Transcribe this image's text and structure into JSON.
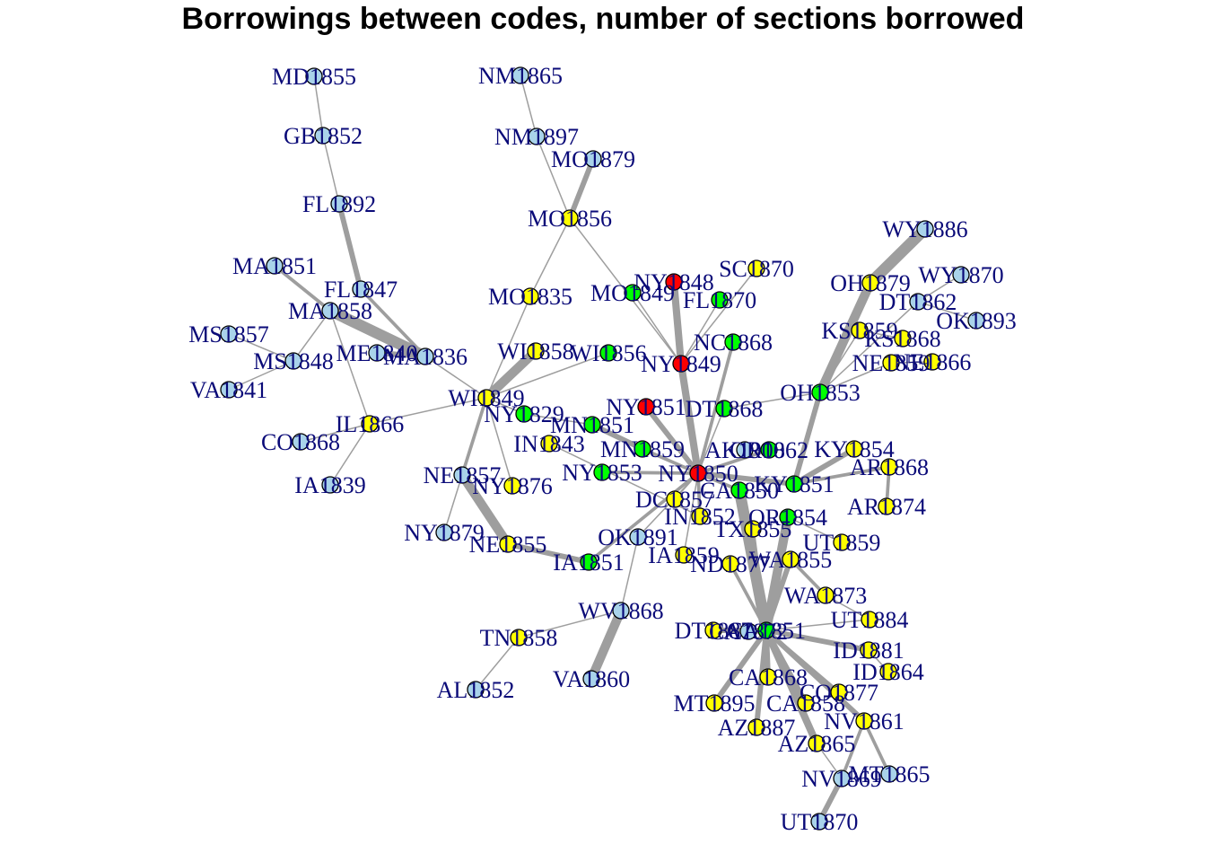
{
  "title": "Borrowings between codes, number of sections borrowed",
  "colors": {
    "light_blue": "#a9d3ea",
    "yellow": "#ffff00",
    "green": "#00ff00",
    "red": "#ff0000",
    "edge": "#9e9e9e",
    "label": "#0a0a78"
  },
  "nodes": [
    {
      "id": "MD1855",
      "label": "MD1855",
      "color": "light_blue"
    },
    {
      "id": "GB1852",
      "label": "GB1852",
      "color": "light_blue"
    },
    {
      "id": "FL1892",
      "label": "FL1892",
      "color": "light_blue"
    },
    {
      "id": "MA1851",
      "label": "MA1851",
      "color": "light_blue"
    },
    {
      "id": "FL1847",
      "label": "FL1847",
      "color": "light_blue"
    },
    {
      "id": "MA1858",
      "label": "MA1858",
      "color": "light_blue"
    },
    {
      "id": "MS1857",
      "label": "MS1857",
      "color": "light_blue"
    },
    {
      "id": "MS1848",
      "label": "MS1848",
      "color": "light_blue"
    },
    {
      "id": "ME1840",
      "label": "ME1840",
      "color": "light_blue"
    },
    {
      "id": "MA1836",
      "label": "MA1836",
      "color": "light_blue"
    },
    {
      "id": "VA1841",
      "label": "VA1841",
      "color": "light_blue"
    },
    {
      "id": "IL1866",
      "label": "IL1866",
      "color": "yellow"
    },
    {
      "id": "CO1868",
      "label": "CO1868",
      "color": "light_blue"
    },
    {
      "id": "IA1839",
      "label": "IA1839",
      "color": "light_blue"
    },
    {
      "id": "NM1865",
      "label": "NM1865",
      "color": "light_blue"
    },
    {
      "id": "NM1897",
      "label": "NM1897",
      "color": "light_blue"
    },
    {
      "id": "MO1879",
      "label": "MO1879",
      "color": "light_blue"
    },
    {
      "id": "MO1856",
      "label": "MO1856",
      "color": "yellow"
    },
    {
      "id": "MO1835",
      "label": "MO1835",
      "color": "yellow"
    },
    {
      "id": "MO1849",
      "label": "MO1849",
      "color": "green"
    },
    {
      "id": "NY1848",
      "label": "NY1848",
      "color": "red"
    },
    {
      "id": "SC1870",
      "label": "SC1870",
      "color": "yellow"
    },
    {
      "id": "FL1870",
      "label": "FL1870",
      "color": "green"
    },
    {
      "id": "WI1858",
      "label": "WI1858",
      "color": "yellow"
    },
    {
      "id": "WI1856",
      "label": "WI1856",
      "color": "green"
    },
    {
      "id": "NY1849",
      "label": "NY1849",
      "color": "red"
    },
    {
      "id": "NC1868",
      "label": "NC1868",
      "color": "green"
    },
    {
      "id": "WI1849",
      "label": "WI1849",
      "color": "yellow"
    },
    {
      "id": "NY1829",
      "label": "NY1829",
      "color": "green"
    },
    {
      "id": "NY1851",
      "label": "NY1851",
      "color": "red"
    },
    {
      "id": "DT1868",
      "label": "DT1868",
      "color": "green"
    },
    {
      "id": "MN1851",
      "label": "MN1851",
      "color": "green"
    },
    {
      "id": "IN1843",
      "label": "IN1843",
      "color": "yellow"
    },
    {
      "id": "MN1859",
      "label": "MN1859",
      "color": "green"
    },
    {
      "id": "NE1857",
      "label": "NE1857",
      "color": "light_blue"
    },
    {
      "id": "NY1853",
      "label": "NY1853",
      "color": "green"
    },
    {
      "id": "NY1850",
      "label": "NY1850",
      "color": "red"
    },
    {
      "id": "NY1876",
      "label": "NY1876",
      "color": "yellow"
    },
    {
      "id": "AK1900",
      "label": "AK1900",
      "color": "light_blue"
    },
    {
      "id": "OR1862",
      "label": "OR1862",
      "color": "green"
    },
    {
      "id": "KY1854",
      "label": "KY1854",
      "color": "yellow"
    },
    {
      "id": "DC1857",
      "label": "DC1857",
      "color": "yellow"
    },
    {
      "id": "CA1850",
      "label": "CA1850",
      "color": "green"
    },
    {
      "id": "KY1851",
      "label": "KY1851",
      "color": "green"
    },
    {
      "id": "IN1852",
      "label": "IN1852",
      "color": "yellow"
    },
    {
      "id": "OR1854",
      "label": "OR1854",
      "color": "green"
    },
    {
      "id": "TX1855",
      "label": "TX1855",
      "color": "yellow"
    },
    {
      "id": "NY1879",
      "label": "NY1879",
      "color": "light_blue"
    },
    {
      "id": "NE1855",
      "label": "NE1855",
      "color": "yellow"
    },
    {
      "id": "OK1891",
      "label": "OK1891",
      "color": "light_blue"
    },
    {
      "id": "IA1851",
      "label": "IA1851",
      "color": "green"
    },
    {
      "id": "IA1859",
      "label": "IA1859",
      "color": "yellow"
    },
    {
      "id": "ND1877",
      "label": "ND1877",
      "color": "yellow"
    },
    {
      "id": "WA1855",
      "label": "WA1855",
      "color": "yellow"
    },
    {
      "id": "UT1859",
      "label": "UT1859",
      "color": "yellow"
    },
    {
      "id": "WY1886",
      "label": "WY1886",
      "color": "light_blue"
    },
    {
      "id": "WY1870",
      "label": "WY1870",
      "color": "light_blue"
    },
    {
      "id": "OH1879",
      "label": "OH1879",
      "color": "yellow"
    },
    {
      "id": "DT1862",
      "label": "DT1862",
      "color": "light_blue"
    },
    {
      "id": "OK1893",
      "label": "OK1893",
      "color": "light_blue"
    },
    {
      "id": "KS1859",
      "label": "KS1859",
      "color": "yellow"
    },
    {
      "id": "KS1868",
      "label": "KS1868",
      "color": "yellow"
    },
    {
      "id": "NE1859",
      "label": "NE1859",
      "color": "yellow"
    },
    {
      "id": "NE1866",
      "label": "NE1866",
      "color": "yellow"
    },
    {
      "id": "OH1853",
      "label": "OH1853",
      "color": "green"
    },
    {
      "id": "AR1868",
      "label": "AR1868",
      "color": "yellow"
    },
    {
      "id": "AR1874",
      "label": "AR1874",
      "color": "yellow"
    },
    {
      "id": "WA1873",
      "label": "WA1873",
      "color": "yellow"
    },
    {
      "id": "UT1884",
      "label": "UT1884",
      "color": "yellow"
    },
    {
      "id": "WV1868",
      "label": "WV1868",
      "color": "light_blue"
    },
    {
      "id": "TN1858",
      "label": "TN1858",
      "color": "yellow"
    },
    {
      "id": "AL1852",
      "label": "AL1852",
      "color": "light_blue"
    },
    {
      "id": "VA1860",
      "label": "VA1860",
      "color": "light_blue"
    },
    {
      "id": "DT1887",
      "label": "DT1887",
      "color": "yellow"
    },
    {
      "id": "CA1872",
      "label": "CA1872",
      "color": "light_blue"
    },
    {
      "id": "CA1851",
      "label": "CA1851",
      "color": "green"
    },
    {
      "id": "ID1881",
      "label": "ID1881",
      "color": "yellow"
    },
    {
      "id": "ID1864",
      "label": "ID1864",
      "color": "yellow"
    },
    {
      "id": "CA1868",
      "label": "CA1868",
      "color": "yellow"
    },
    {
      "id": "CO1877",
      "label": "CO1877",
      "color": "yellow"
    },
    {
      "id": "MT1895",
      "label": "MT1895",
      "color": "yellow"
    },
    {
      "id": "CA1858",
      "label": "CA1858",
      "color": "yellow"
    },
    {
      "id": "NV1861",
      "label": "NV1861",
      "color": "yellow"
    },
    {
      "id": "AZ1887",
      "label": "AZ1887",
      "color": "yellow"
    },
    {
      "id": "AZ1865",
      "label": "AZ1865",
      "color": "yellow"
    },
    {
      "id": "NV1869",
      "label": "NV1869",
      "color": "light_blue"
    },
    {
      "id": "MT1865",
      "label": "MT1865",
      "color": "light_blue"
    },
    {
      "id": "UT1870",
      "label": "UT1870",
      "color": "light_blue"
    }
  ],
  "edges": [
    {
      "source": "MD1855",
      "target": "GB1852",
      "weight": 1
    },
    {
      "source": "GB1852",
      "target": "FL1892",
      "weight": 1
    },
    {
      "source": "FL1892",
      "target": "FL1847",
      "weight": 3
    },
    {
      "source": "FL1847",
      "target": "MA1836",
      "weight": 2
    },
    {
      "source": "MA1851",
      "target": "MA1858",
      "weight": 2
    },
    {
      "source": "MA1858",
      "target": "MA1836",
      "weight": 6
    },
    {
      "source": "MA1858",
      "target": "MS1848",
      "weight": 1
    },
    {
      "source": "MS1857",
      "target": "MS1848",
      "weight": 1
    },
    {
      "source": "VA1841",
      "target": "MS1848",
      "weight": 1
    },
    {
      "source": "ME1840",
      "target": "MA1836",
      "weight": 3
    },
    {
      "source": "MA1858",
      "target": "IL1866",
      "weight": 1
    },
    {
      "source": "IL1866",
      "target": "CO1868",
      "weight": 1
    },
    {
      "source": "IL1866",
      "target": "IA1839",
      "weight": 1
    },
    {
      "source": "IL1866",
      "target": "WI1849",
      "weight": 1
    },
    {
      "source": "MA1836",
      "target": "WI1849",
      "weight": 1
    },
    {
      "source": "NM1865",
      "target": "NM1897",
      "weight": 1
    },
    {
      "source": "NM1897",
      "target": "MO1856",
      "weight": 1
    },
    {
      "source": "MO1879",
      "target": "MO1856",
      "weight": 3
    },
    {
      "source": "MO1856",
      "target": "MO1835",
      "weight": 1
    },
    {
      "source": "MO1856",
      "target": "NY1849",
      "weight": 1
    },
    {
      "source": "MO1849",
      "target": "NY1849",
      "weight": 1
    },
    {
      "source": "NY1848",
      "target": "NY1849",
      "weight": 4
    },
    {
      "source": "SC1870",
      "target": "NY1849",
      "weight": 1
    },
    {
      "source": "FL1870",
      "target": "NY1849",
      "weight": 1
    },
    {
      "source": "MO1835",
      "target": "WI1849",
      "weight": 1
    },
    {
      "source": "WI1858",
      "target": "WI1849",
      "weight": 5
    },
    {
      "source": "WI1856",
      "target": "WI1849",
      "weight": 1
    },
    {
      "source": "NC1868",
      "target": "NY1850",
      "weight": 2
    },
    {
      "source": "NY1849",
      "target": "NY1850",
      "weight": 4
    },
    {
      "source": "NY1851",
      "target": "NY1850",
      "weight": 3
    },
    {
      "source": "DT1868",
      "target": "NY1850",
      "weight": 1
    },
    {
      "source": "WI1849",
      "target": "NY1829",
      "weight": 1
    },
    {
      "source": "NY1829",
      "target": "MN1851",
      "weight": 1
    },
    {
      "source": "MN1851",
      "target": "MN1859",
      "weight": 3
    },
    {
      "source": "MN1859",
      "target": "NY1850",
      "weight": 2
    },
    {
      "source": "IN1843",
      "target": "IN1852",
      "weight": 1
    },
    {
      "source": "WI1849",
      "target": "NE1857",
      "weight": 2
    },
    {
      "source": "WI1849",
      "target": "NY1876",
      "weight": 1
    },
    {
      "source": "NE1857",
      "target": "NY1879",
      "weight": 1
    },
    {
      "source": "NE1857",
      "target": "NE1855",
      "weight": 5
    },
    {
      "source": "NE1855",
      "target": "IA1851",
      "weight": 3
    },
    {
      "source": "IA1851",
      "target": "NY1850",
      "weight": 2
    },
    {
      "source": "NY1853",
      "target": "NY1850",
      "weight": 2
    },
    {
      "source": "NY1850",
      "target": "CA1850",
      "weight": 2
    },
    {
      "source": "NY1850",
      "target": "KY1851",
      "weight": 3
    },
    {
      "source": "NY1850",
      "target": "IN1852",
      "weight": 2
    },
    {
      "source": "NY1850",
      "target": "DC1857",
      "weight": 1
    },
    {
      "source": "NY1850",
      "target": "OK1891",
      "weight": 1
    },
    {
      "source": "NY1850",
      "target": "IA1859",
      "weight": 1
    },
    {
      "source": "NY1850",
      "target": "OR1862",
      "weight": 2
    },
    {
      "source": "CA1850",
      "target": "CA1851",
      "weight": 6
    },
    {
      "source": "KY1851",
      "target": "OH1853",
      "weight": 3
    },
    {
      "source": "KY1851",
      "target": "KY1854",
      "weight": 3
    },
    {
      "source": "KY1851",
      "target": "AR1868",
      "weight": 2
    },
    {
      "source": "AR1868",
      "target": "AR1874",
      "weight": 2
    },
    {
      "source": "OR1854",
      "target": "CA1851",
      "weight": 5
    },
    {
      "source": "TX1855",
      "target": "CA1851",
      "weight": 2
    },
    {
      "source": "WA1855",
      "target": "CA1851",
      "weight": 3
    },
    {
      "source": "ND1877",
      "target": "CA1851",
      "weight": 2
    },
    {
      "source": "OH1853",
      "target": "OH1879",
      "weight": 5
    },
    {
      "source": "OH1879",
      "target": "WY1886",
      "weight": 6
    },
    {
      "source": "OH1853",
      "target": "DT1862",
      "weight": 1
    },
    {
      "source": "DT1862",
      "target": "WY1870",
      "weight": 1
    },
    {
      "source": "OH1853",
      "target": "KS1859",
      "weight": 1
    },
    {
      "source": "KS1859",
      "target": "KS1868",
      "weight": 1
    },
    {
      "source": "OH1853",
      "target": "NE1859",
      "weight": 1
    },
    {
      "source": "NE1859",
      "target": "NE1866",
      "weight": 1
    },
    {
      "source": "OK1893",
      "target": "DT1862",
      "weight": 1
    },
    {
      "source": "OH1853",
      "target": "DT1868",
      "weight": 1
    },
    {
      "source": "OR1854",
      "target": "UT1859",
      "weight": 1
    },
    {
      "source": "WA1855",
      "target": "WA1873",
      "weight": 2
    },
    {
      "source": "WA1873",
      "target": "UT1884",
      "weight": 1
    },
    {
      "source": "OK1891",
      "target": "WV1868",
      "weight": 1
    },
    {
      "source": "WV1868",
      "target": "VA1860",
      "weight": 5
    },
    {
      "source": "WV1868",
      "target": "TN1858",
      "weight": 1
    },
    {
      "source": "TN1858",
      "target": "AL1852",
      "weight": 1
    },
    {
      "source": "CA1851",
      "target": "DT1887",
      "weight": 3
    },
    {
      "source": "CA1851",
      "target": "CA1872",
      "weight": 3
    },
    {
      "source": "CA1851",
      "target": "ID1881",
      "weight": 3
    },
    {
      "source": "ID1881",
      "target": "ID1864",
      "weight": 1
    },
    {
      "source": "CA1851",
      "target": "CA1868",
      "weight": 3
    },
    {
      "source": "CA1851",
      "target": "CO1877",
      "weight": 2
    },
    {
      "source": "CA1851",
      "target": "MT1895",
      "weight": 3
    },
    {
      "source": "CA1851",
      "target": "CA1858",
      "weight": 3
    },
    {
      "source": "CA1851",
      "target": "NV1861",
      "weight": 3
    },
    {
      "source": "CA1851",
      "target": "AZ1887",
      "weight": 3
    },
    {
      "source": "CA1851",
      "target": "AZ1865",
      "weight": 4
    },
    {
      "source": "NV1861",
      "target": "NV1869",
      "weight": 2
    },
    {
      "source": "NV1861",
      "target": "MT1865",
      "weight": 2
    },
    {
      "source": "NV1869",
      "target": "UT1870",
      "weight": 3
    },
    {
      "source": "AZ1865",
      "target": "NV1869",
      "weight": 1
    },
    {
      "source": "CA1851",
      "target": "UT1884",
      "weight": 1
    }
  ]
}
